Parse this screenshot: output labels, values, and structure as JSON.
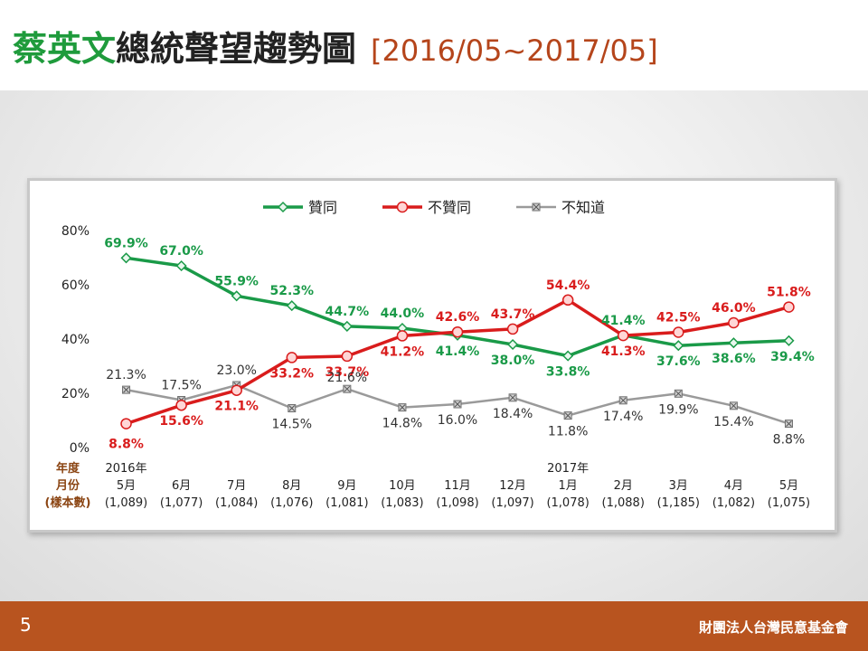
{
  "slide": {
    "title_name": "蔡英文",
    "title_rest": "總統聲望趨勢圖",
    "title_range": "[2016/05~2017/05]",
    "page_number": "5",
    "organization": "財團法人台灣民意基金會"
  },
  "chart_data": {
    "type": "line",
    "x": [
      {
        "line1": "2016年",
        "line2": "5月",
        "sample": "(1,089)"
      },
      {
        "line1": "",
        "line2": "6月",
        "sample": "(1,077)"
      },
      {
        "line1": "",
        "line2": "7月",
        "sample": "(1,084)"
      },
      {
        "line1": "",
        "line2": "8月",
        "sample": "(1,076)"
      },
      {
        "line1": "",
        "line2": "9月",
        "sample": "(1,081)"
      },
      {
        "line1": "",
        "line2": "10月",
        "sample": "(1,083)"
      },
      {
        "line1": "",
        "line2": "11月",
        "sample": "(1,098)"
      },
      {
        "line1": "",
        "line2": "12月",
        "sample": "(1,097)"
      },
      {
        "line1": "2017年",
        "line2": "1月",
        "sample": "(1,078)"
      },
      {
        "line1": "",
        "line2": "2月",
        "sample": "(1,088)"
      },
      {
        "line1": "",
        "line2": "3月",
        "sample": "(1,185)"
      },
      {
        "line1": "",
        "line2": "4月",
        "sample": "(1,082)"
      },
      {
        "line1": "",
        "line2": "5月",
        "sample": "(1,075)"
      }
    ],
    "row_labels": [
      "年度",
      "月份",
      "(樣本數)"
    ],
    "ylim": [
      0,
      80
    ],
    "yticks": [
      "0%",
      "20%",
      "40%",
      "60%",
      "80%"
    ],
    "legend_position": "top",
    "grid": false,
    "series": [
      {
        "name": "贊同",
        "color": "#1a9a48",
        "marker": "diamond",
        "values": [
          69.9,
          67.0,
          55.9,
          52.3,
          44.7,
          44.0,
          41.4,
          38.0,
          33.8,
          41.4,
          37.6,
          38.6,
          39.4
        ],
        "labels": [
          "69.9%",
          "67.0%",
          "55.9%",
          "52.3%",
          "44.7%",
          "44.0%",
          "41.4%",
          "38.0%",
          "33.8%",
          "41.4%",
          "37.6%",
          "38.6%",
          "39.4%"
        ]
      },
      {
        "name": "不贊同",
        "color": "#d91c1c",
        "marker": "circle",
        "values": [
          8.8,
          15.6,
          21.1,
          33.2,
          33.7,
          41.2,
          42.6,
          43.7,
          54.4,
          41.3,
          42.5,
          46.0,
          51.8
        ],
        "labels": [
          "8.8%",
          "15.6%",
          "21.1%",
          "33.2%",
          "33.7%",
          "41.2%",
          "42.6%",
          "43.7%",
          "54.4%",
          "41.3%",
          "42.5%",
          "46.0%",
          "51.8%"
        ]
      },
      {
        "name": "不知道",
        "color": "#9a9a9a",
        "marker": "square-x",
        "values": [
          21.3,
          17.5,
          23.0,
          14.5,
          21.6,
          14.8,
          16.0,
          18.4,
          11.8,
          17.4,
          19.9,
          15.4,
          8.8
        ],
        "labels": [
          "21.3%",
          "17.5%",
          "23.0%",
          "14.5%",
          "21.6%",
          "14.8%",
          "16.0%",
          "18.4%",
          "11.8%",
          "17.4%",
          "19.9%",
          "15.4%",
          "8.8%"
        ]
      }
    ]
  }
}
